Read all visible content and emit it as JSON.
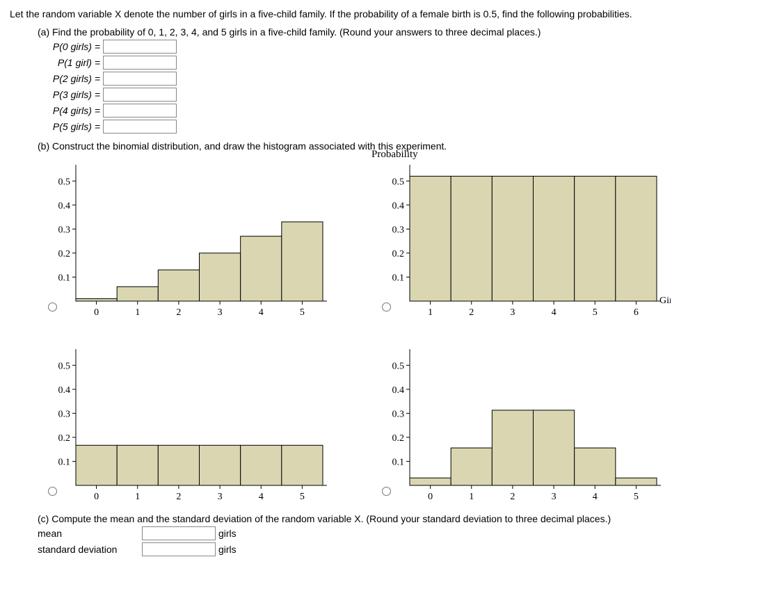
{
  "intro": "Let the random variable X denote the number of girls in a five-child family. If the probability of a female birth is 0.5, find the following probabilities.",
  "partA": {
    "prompt": "(a) Find the probability of 0, 1, 2, 3, 4, and 5 girls in a five-child family. (Round your answers to three decimal places.)",
    "rows": [
      {
        "label": "P(0 girls) ="
      },
      {
        "label": "P(1 girl) ="
      },
      {
        "label": "P(2 girls) ="
      },
      {
        "label": "P(3 girls) ="
      },
      {
        "label": "P(4 girls) ="
      },
      {
        "label": "P(5 girls) ="
      }
    ]
  },
  "partB": {
    "prompt": "(b) Construct the binomial distribution, and draw the histogram associated with this experiment.",
    "title_top": "Probability",
    "side_label": "Girls",
    "chart_style": {
      "bar_fill": "#d9d6b1",
      "bar_stroke": "#000000",
      "axis_color": "#000000",
      "y_ticks": [
        0.1,
        0.2,
        0.3,
        0.4,
        0.5
      ],
      "max_y": 0.55,
      "tick_fontsize": 14,
      "font": "Times New Roman"
    },
    "charts": [
      {
        "x_labels": [
          "0",
          "1",
          "2",
          "3",
          "4",
          "5"
        ],
        "values": [
          0.01,
          0.06,
          0.13,
          0.2,
          0.27,
          0.33
        ]
      },
      {
        "x_labels": [
          "1",
          "2",
          "3",
          "4",
          "5",
          "6"
        ],
        "values": [
          0.52,
          0.52,
          0.52,
          0.52,
          0.52,
          0.52
        ]
      },
      {
        "x_labels": [
          "0",
          "1",
          "2",
          "3",
          "4",
          "5"
        ],
        "values": [
          0.167,
          0.167,
          0.167,
          0.167,
          0.167,
          0.167
        ]
      },
      {
        "x_labels": [
          "0",
          "1",
          "2",
          "3",
          "4",
          "5"
        ],
        "values": [
          0.031,
          0.156,
          0.313,
          0.313,
          0.156,
          0.031
        ]
      }
    ]
  },
  "partC": {
    "prompt": "(c) Compute the mean and the standard deviation of the random variable X. (Round your standard deviation to three decimal places.)",
    "rows": [
      {
        "label": "mean",
        "unit": "girls"
      },
      {
        "label": "standard deviation",
        "unit": "girls"
      }
    ]
  }
}
